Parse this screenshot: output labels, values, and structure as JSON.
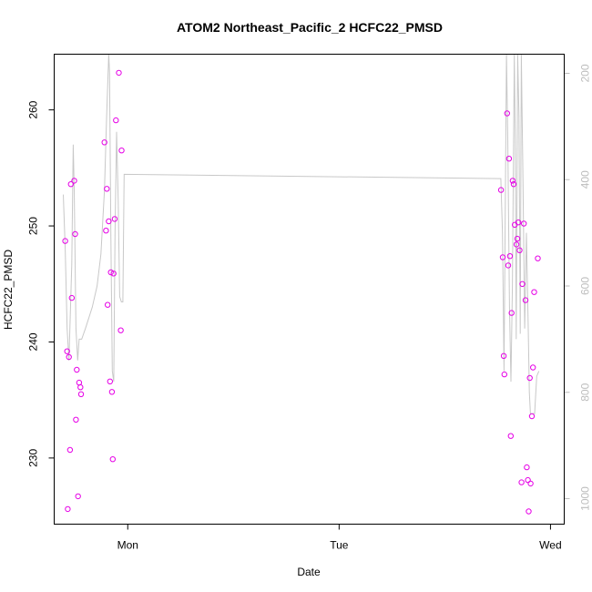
{
  "chart_data": {
    "type": "scatter",
    "title": "ATOM2 Northeast_Pacific_2 HCFC22_PMSD",
    "xlabel": "Date",
    "ylabel": "HCFC22_PMSD",
    "x_ticks": [
      {
        "label": "Mon",
        "day": 1.0
      },
      {
        "label": "Tue",
        "day": 2.0
      },
      {
        "label": "Wed",
        "day": 3.0
      }
    ],
    "xlim": [
      0.652,
      3.065
    ],
    "ylim": [
      224.3,
      264.8
    ],
    "y_ticks": [
      230,
      240,
      250,
      260
    ],
    "right_axis": {
      "label": "",
      "lim_top": 164,
      "lim_bottom": 1048,
      "ticks": [
        200,
        400,
        600,
        800,
        1000
      ]
    },
    "grid": false,
    "series": [
      {
        "role": "points",
        "color": "#e600e6",
        "marker": "open-circle",
        "points": [
          {
            "x": 0.704,
            "y": 248.7
          },
          {
            "x": 0.713,
            "y": 239.2
          },
          {
            "x": 0.716,
            "y": 225.6
          },
          {
            "x": 0.722,
            "y": 238.7
          },
          {
            "x": 0.727,
            "y": 230.7
          },
          {
            "x": 0.731,
            "y": 253.6
          },
          {
            "x": 0.735,
            "y": 243.8
          },
          {
            "x": 0.747,
            "y": 253.9
          },
          {
            "x": 0.751,
            "y": 249.3
          },
          {
            "x": 0.755,
            "y": 233.3
          },
          {
            "x": 0.759,
            "y": 237.6
          },
          {
            "x": 0.765,
            "y": 226.7
          },
          {
            "x": 0.77,
            "y": 236.5
          },
          {
            "x": 0.776,
            "y": 236.1
          },
          {
            "x": 0.779,
            "y": 235.5
          },
          {
            "x": 0.89,
            "y": 257.2
          },
          {
            "x": 0.897,
            "y": 249.6
          },
          {
            "x": 0.901,
            "y": 253.2
          },
          {
            "x": 0.905,
            "y": 243.2
          },
          {
            "x": 0.91,
            "y": 250.4
          },
          {
            "x": 0.916,
            "y": 236.6
          },
          {
            "x": 0.92,
            "y": 246.0
          },
          {
            "x": 0.925,
            "y": 235.7
          },
          {
            "x": 0.929,
            "y": 229.9
          },
          {
            "x": 0.933,
            "y": 245.9
          },
          {
            "x": 0.938,
            "y": 250.6
          },
          {
            "x": 0.944,
            "y": 259.1
          },
          {
            "x": 0.958,
            "y": 263.2
          },
          {
            "x": 0.967,
            "y": 241.0
          },
          {
            "x": 0.971,
            "y": 256.5
          },
          {
            "x": 2.766,
            "y": 253.1
          },
          {
            "x": 2.774,
            "y": 247.3
          },
          {
            "x": 2.779,
            "y": 238.8
          },
          {
            "x": 2.782,
            "y": 237.2
          },
          {
            "x": 2.795,
            "y": 259.7
          },
          {
            "x": 2.8,
            "y": 246.6
          },
          {
            "x": 2.804,
            "y": 255.8
          },
          {
            "x": 2.808,
            "y": 247.4
          },
          {
            "x": 2.812,
            "y": 231.9
          },
          {
            "x": 2.816,
            "y": 242.5
          },
          {
            "x": 2.821,
            "y": 253.9
          },
          {
            "x": 2.826,
            "y": 253.6
          },
          {
            "x": 2.831,
            "y": 250.1
          },
          {
            "x": 2.839,
            "y": 248.4
          },
          {
            "x": 2.843,
            "y": 248.9
          },
          {
            "x": 2.848,
            "y": 250.3
          },
          {
            "x": 2.854,
            "y": 247.9
          },
          {
            "x": 2.863,
            "y": 227.9
          },
          {
            "x": 2.867,
            "y": 245.0
          },
          {
            "x": 2.874,
            "y": 250.2
          },
          {
            "x": 2.882,
            "y": 243.6
          },
          {
            "x": 2.888,
            "y": 229.2
          },
          {
            "x": 2.893,
            "y": 228.1
          },
          {
            "x": 2.897,
            "y": 225.4
          },
          {
            "x": 2.902,
            "y": 236.9
          },
          {
            "x": 2.906,
            "y": 227.8
          },
          {
            "x": 2.912,
            "y": 233.6
          },
          {
            "x": 2.917,
            "y": 237.8
          },
          {
            "x": 2.923,
            "y": 244.3
          },
          {
            "x": 2.94,
            "y": 247.2
          }
        ]
      },
      {
        "role": "line",
        "color": "#c8c8c8",
        "axis": "right",
        "points": [
          {
            "x": 0.695,
            "y": 428
          },
          {
            "x": 0.704,
            "y": 530
          },
          {
            "x": 0.713,
            "y": 680
          },
          {
            "x": 0.722,
            "y": 740
          },
          {
            "x": 0.735,
            "y": 560
          },
          {
            "x": 0.742,
            "y": 334
          },
          {
            "x": 0.747,
            "y": 420
          },
          {
            "x": 0.755,
            "y": 680
          },
          {
            "x": 0.763,
            "y": 740
          },
          {
            "x": 0.77,
            "y": 700
          },
          {
            "x": 0.782,
            "y": 700
          },
          {
            "x": 0.8,
            "y": 680
          },
          {
            "x": 0.832,
            "y": 640
          },
          {
            "x": 0.855,
            "y": 600
          },
          {
            "x": 0.873,
            "y": 540
          },
          {
            "x": 0.89,
            "y": 420
          },
          {
            "x": 0.9,
            "y": 280
          },
          {
            "x": 0.91,
            "y": 164
          },
          {
            "x": 0.914,
            "y": 200
          },
          {
            "x": 0.92,
            "y": 500
          },
          {
            "x": 0.927,
            "y": 760
          },
          {
            "x": 0.934,
            "y": 780
          },
          {
            "x": 0.94,
            "y": 500
          },
          {
            "x": 0.947,
            "y": 310
          },
          {
            "x": 0.955,
            "y": 440
          },
          {
            "x": 0.962,
            "y": 620
          },
          {
            "x": 0.97,
            "y": 630
          },
          {
            "x": 0.977,
            "y": 630
          },
          {
            "x": 0.983,
            "y": 390
          },
          {
            "x": 2.765,
            "y": 398
          },
          {
            "x": 2.773,
            "y": 500
          },
          {
            "x": 2.78,
            "y": 760
          },
          {
            "x": 2.792,
            "y": 164
          },
          {
            "x": 2.798,
            "y": 320
          },
          {
            "x": 2.806,
            "y": 640
          },
          {
            "x": 2.813,
            "y": 780
          },
          {
            "x": 2.82,
            "y": 600
          },
          {
            "x": 2.829,
            "y": 164
          },
          {
            "x": 2.833,
            "y": 320
          },
          {
            "x": 2.838,
            "y": 700
          },
          {
            "x": 2.845,
            "y": 164
          },
          {
            "x": 2.851,
            "y": 280
          },
          {
            "x": 2.857,
            "y": 690
          },
          {
            "x": 2.862,
            "y": 164
          },
          {
            "x": 2.87,
            "y": 400
          },
          {
            "x": 2.878,
            "y": 680
          },
          {
            "x": 2.886,
            "y": 500
          },
          {
            "x": 2.895,
            "y": 680
          },
          {
            "x": 2.9,
            "y": 800
          },
          {
            "x": 2.905,
            "y": 840
          },
          {
            "x": 2.925,
            "y": 840
          },
          {
            "x": 2.935,
            "y": 770
          },
          {
            "x": 2.945,
            "y": 760
          }
        ]
      }
    ]
  }
}
